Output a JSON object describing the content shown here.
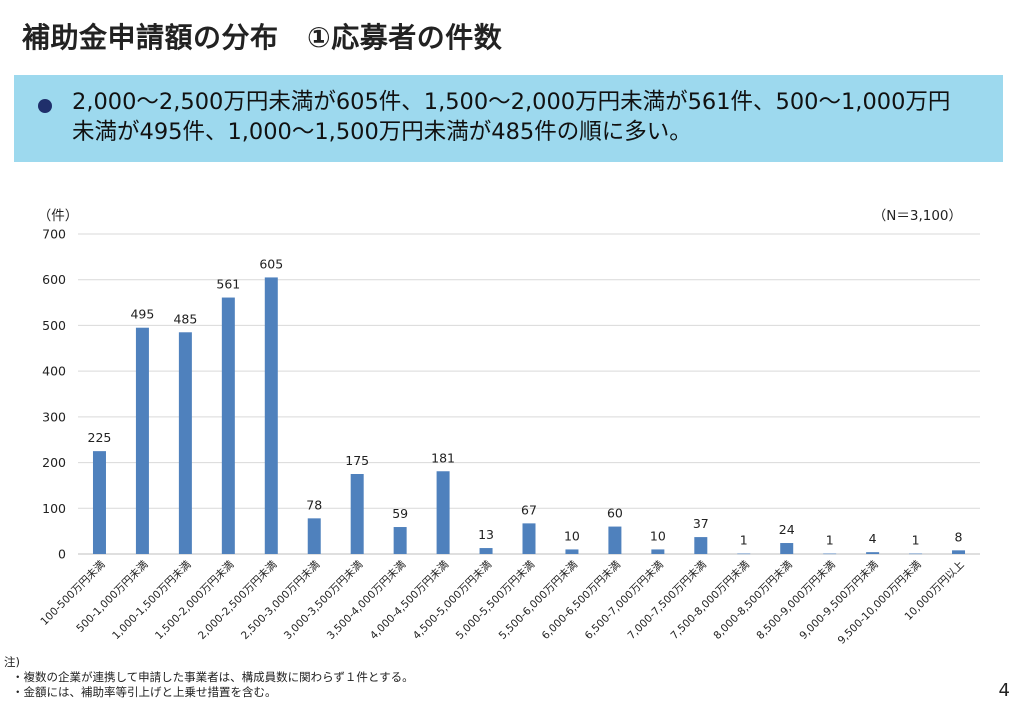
{
  "slide": {
    "title": "補助金申請額の分布　①応募者の件数",
    "summary": "2,000～2,500万円未満が605件、1,500～2,000万円未満が561件、500～1,000万円未満が495件、1,000～1,500万円未満が485件の順に多い。",
    "notes_heading": "注)",
    "notes": [
      "・複数の企業が連携して申請した事業者は、構成員数に関わらず１件とする。",
      "・金額には、補助率等引上げと上乗せ措置を含む。"
    ],
    "page_number": "4"
  },
  "colors": {
    "summary_background": "#9dd9ee",
    "bar": "#4f81bd",
    "bullet": "#1f2f6b"
  },
  "chart_data": {
    "type": "bar",
    "ylabel": "（件）",
    "n_label": "（N＝3,100）",
    "ylim": [
      0,
      700
    ],
    "yticks": [
      0,
      100,
      200,
      300,
      400,
      500,
      600,
      700
    ],
    "grid": true,
    "categories": [
      "100-500万円未満",
      "500-1,000万円未満",
      "1,000-1,500万円未満",
      "1,500-2,000万円未満",
      "2,000-2,500万円未満",
      "2,500-3,000万円未満",
      "3,000-3,500万円未満",
      "3,500-4,000万円未満",
      "4,000-4,500万円未満",
      "4,500-5,000万円未満",
      "5,000-5,500万円未満",
      "5,500-6,000万円未満",
      "6,000-6,500万円未満",
      "6,500-7,000万円未満",
      "7,000-7,500万円未満",
      "7,500-8,000万円未満",
      "8,000-8,500万円未満",
      "8,500-9,000万円未満",
      "9,000-9,500万円未満",
      "9,500-10,000万円未満",
      "10,000万円以上"
    ],
    "values": [
      225,
      495,
      485,
      561,
      605,
      78,
      175,
      59,
      181,
      13,
      67,
      10,
      60,
      10,
      37,
      1,
      24,
      1,
      4,
      1,
      8
    ]
  }
}
